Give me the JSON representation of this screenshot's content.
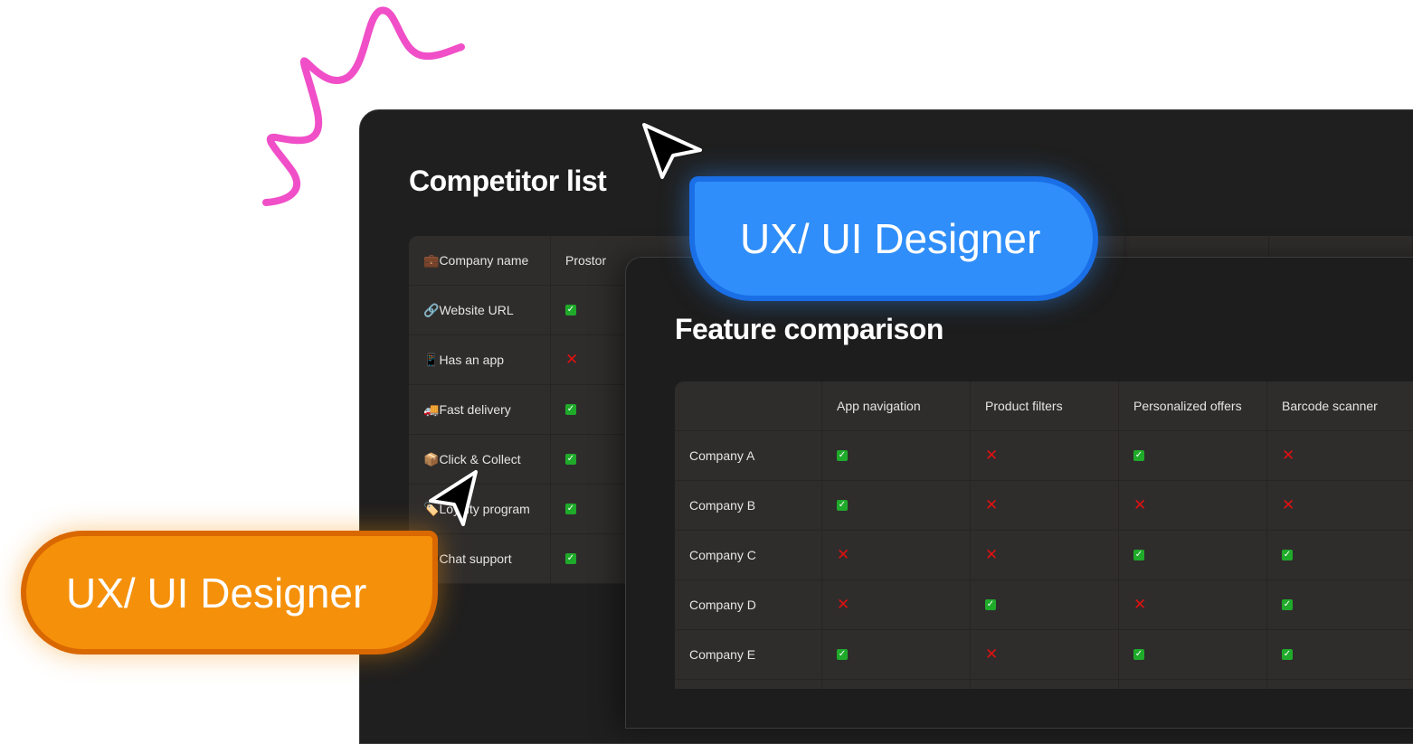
{
  "badge_label": "UX/ UI Designer",
  "competitor": {
    "title": "Competitor list",
    "header": {
      "icon": "💼",
      "label": "Company name",
      "col": "Prostor"
    },
    "rows": [
      {
        "icon": "🔗",
        "label": "Website URL",
        "value": "yes"
      },
      {
        "icon": "📱",
        "label": "Has an app",
        "value": "no"
      },
      {
        "icon": "🚚",
        "label": "Fast delivery",
        "value": "yes"
      },
      {
        "icon": "📦",
        "label": "Click & Collect",
        "value": "yes"
      },
      {
        "icon": "🏷️",
        "label": "Loyalty program",
        "value": "yes"
      },
      {
        "icon": "💬",
        "label": "Chat support",
        "value": "yes"
      }
    ]
  },
  "feature": {
    "title": "Feature comparison",
    "columns": [
      "App navigation",
      "Product filters",
      "Personalized offers",
      "Barcode scanner"
    ],
    "rows": [
      {
        "name": "Company A",
        "values": [
          "yes",
          "no",
          "yes",
          "no"
        ]
      },
      {
        "name": "Company B",
        "values": [
          "yes",
          "no",
          "no",
          "no"
        ]
      },
      {
        "name": "Company C",
        "values": [
          "no",
          "no",
          "yes",
          "yes"
        ]
      },
      {
        "name": "Company D",
        "values": [
          "no",
          "yes",
          "no",
          "yes"
        ]
      },
      {
        "name": "Company E",
        "values": [
          "yes",
          "no",
          "yes",
          "yes"
        ]
      }
    ]
  },
  "colors": {
    "blue_badge": "#2f8ef9",
    "orange_badge": "#f5900a",
    "squiggle": "#f04fc8",
    "check": "#1faa2a",
    "cross": "#e01010"
  }
}
